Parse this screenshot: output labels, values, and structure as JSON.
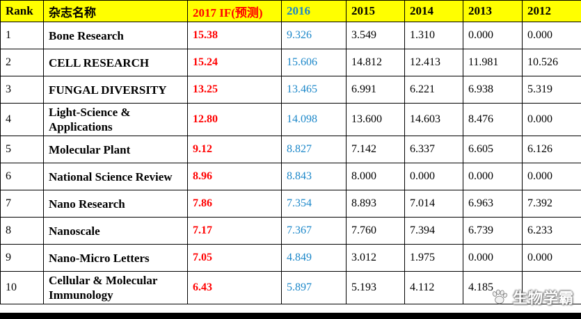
{
  "chart_data": {
    "type": "table",
    "title": "",
    "columns": [
      {
        "label": "Rank"
      },
      {
        "label": "杂志名称"
      },
      {
        "label": "2017 IF(预测)"
      },
      {
        "label": "2016"
      },
      {
        "label": "2015"
      },
      {
        "label": "2014"
      },
      {
        "label": "2013"
      },
      {
        "label": "2012"
      }
    ],
    "rows": [
      {
        "rank": "1",
        "name": "Bone Research",
        "if2017": "15.38",
        "y2016": "9.326",
        "y2015": "3.549",
        "y2014": "1.310",
        "y2013": "0.000",
        "y2012": "0.000"
      },
      {
        "rank": "2",
        "name": "CELL RESEARCH",
        "if2017": "15.24",
        "y2016": "15.606",
        "y2015": "14.812",
        "y2014": "12.413",
        "y2013": "11.981",
        "y2012": "10.526"
      },
      {
        "rank": "3",
        "name": "FUNGAL DIVERSITY",
        "if2017": "13.25",
        "y2016": "13.465",
        "y2015": "6.991",
        "y2014": "6.221",
        "y2013": "6.938",
        "y2012": "5.319"
      },
      {
        "rank": "4",
        "name": "Light-Science & Applications",
        "if2017": "12.80",
        "y2016": "14.098",
        "y2015": "13.600",
        "y2014": "14.603",
        "y2013": "8.476",
        "y2012": "0.000"
      },
      {
        "rank": "5",
        "name": "Molecular Plant",
        "if2017": "9.12",
        "y2016": "8.827",
        "y2015": "7.142",
        "y2014": "6.337",
        "y2013": "6.605",
        "y2012": "6.126"
      },
      {
        "rank": "6",
        "name": "National Science Review",
        "if2017": "8.96",
        "y2016": "8.843",
        "y2015": "8.000",
        "y2014": "0.000",
        "y2013": "0.000",
        "y2012": "0.000"
      },
      {
        "rank": "7",
        "name": "Nano Research",
        "if2017": "7.86",
        "y2016": "7.354",
        "y2015": "8.893",
        "y2014": "7.014",
        "y2013": "6.963",
        "y2012": "7.392"
      },
      {
        "rank": "8",
        "name": "Nanoscale",
        "if2017": "7.17",
        "y2016": "7.367",
        "y2015": "7.760",
        "y2014": "7.394",
        "y2013": "6.739",
        "y2012": "6.233"
      },
      {
        "rank": "9",
        "name": "Nano-Micro Letters",
        "if2017": "7.05",
        "y2016": "4.849",
        "y2015": "3.012",
        "y2014": "1.975",
        "y2013": "0.000",
        "y2012": "0.000"
      },
      {
        "rank": "10",
        "name": "Cellular & Molecular Immunology",
        "if2017": "6.43",
        "y2016": "5.897",
        "y2015": "5.193",
        "y2014": "4.112",
        "y2013": "4.185",
        "y2012": ""
      }
    ]
  },
  "watermark": {
    "text": "生物学霸",
    "icon": "paw-icon"
  },
  "colors": {
    "header_bg": "#FFFF00",
    "if_2017_red": "#FF0000",
    "year_2016_blue": "#1B87C9",
    "border": "#000000"
  }
}
